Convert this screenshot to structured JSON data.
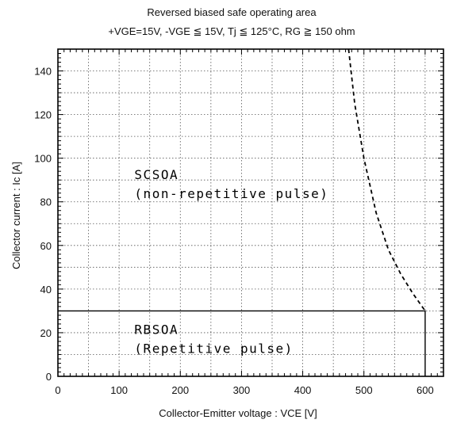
{
  "chart_data": {
    "type": "line",
    "title": "Reversed biased safe operating area",
    "subtitle": "+VGE=15V,  -VGE ≦ 15V,  Tj ≦ 125°C,  RG ≧ 150 ohm",
    "xlabel": "Collector-Emitter voltage  :  VCE [V]",
    "ylabel": "Collector current  :  Ic [A]",
    "xlim": [
      0,
      630
    ],
    "ylim": [
      0,
      150
    ],
    "xticks": [
      0,
      100,
      200,
      300,
      400,
      500,
      600
    ],
    "yticks": [
      0,
      20,
      40,
      60,
      80,
      100,
      120,
      140
    ],
    "grid": true,
    "series": [
      {
        "label_lines": [
          "RBSOA",
          "(Repetitive pulse)"
        ],
        "style": "solid",
        "x": [
          0,
          600,
          600
        ],
        "y": [
          30,
          30,
          0
        ]
      },
      {
        "label_lines": [
          "SCSOA",
          "(non-repetitive pulse)"
        ],
        "style": "dashed",
        "x": [
          475,
          485,
          500,
          520,
          540,
          560,
          580,
          600
        ],
        "y": [
          150,
          125,
          100,
          75,
          58,
          47,
          38,
          30
        ]
      }
    ]
  }
}
